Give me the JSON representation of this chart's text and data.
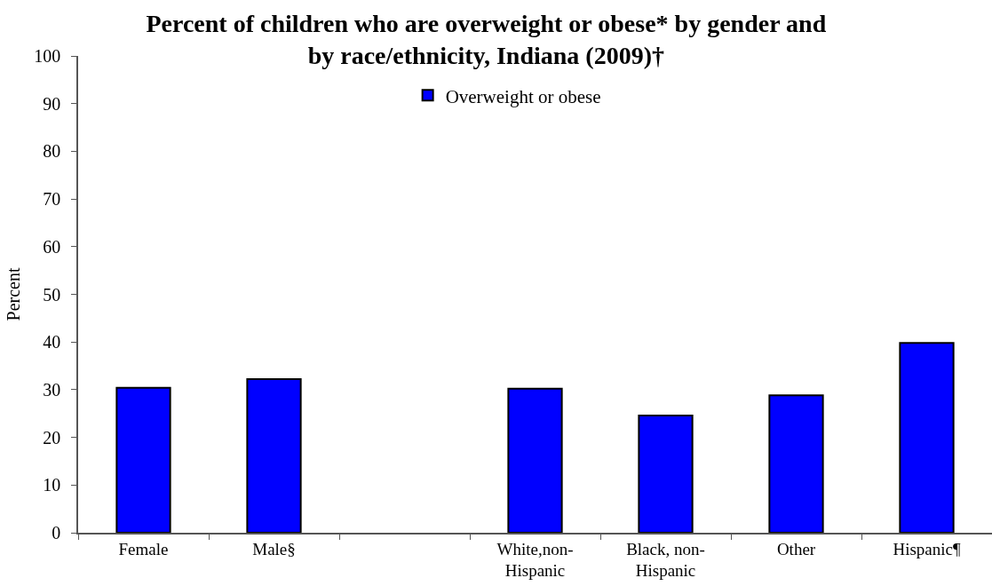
{
  "chart_data": {
    "type": "bar",
    "title": "Percent of children who are overweight or obese* by gender and by race/ethnicity, Indiana (2009)†",
    "ylabel": "Percent",
    "categories": [
      "Female",
      "Male§",
      null,
      "White,non-Hispanic",
      "Black, non-Hispanic",
      "Other",
      "Hispanic¶"
    ],
    "series": [
      {
        "name": "Overweight or obese",
        "color": "#0000ff",
        "values": [
          30.4,
          32.2,
          null,
          30.2,
          24.6,
          28.8,
          39.8
        ]
      }
    ],
    "ylim": [
      0,
      100
    ],
    "yticks": [
      0,
      10,
      20,
      30,
      40,
      50,
      60,
      70,
      80,
      90,
      100
    ],
    "grid": false,
    "legend": "top"
  }
}
